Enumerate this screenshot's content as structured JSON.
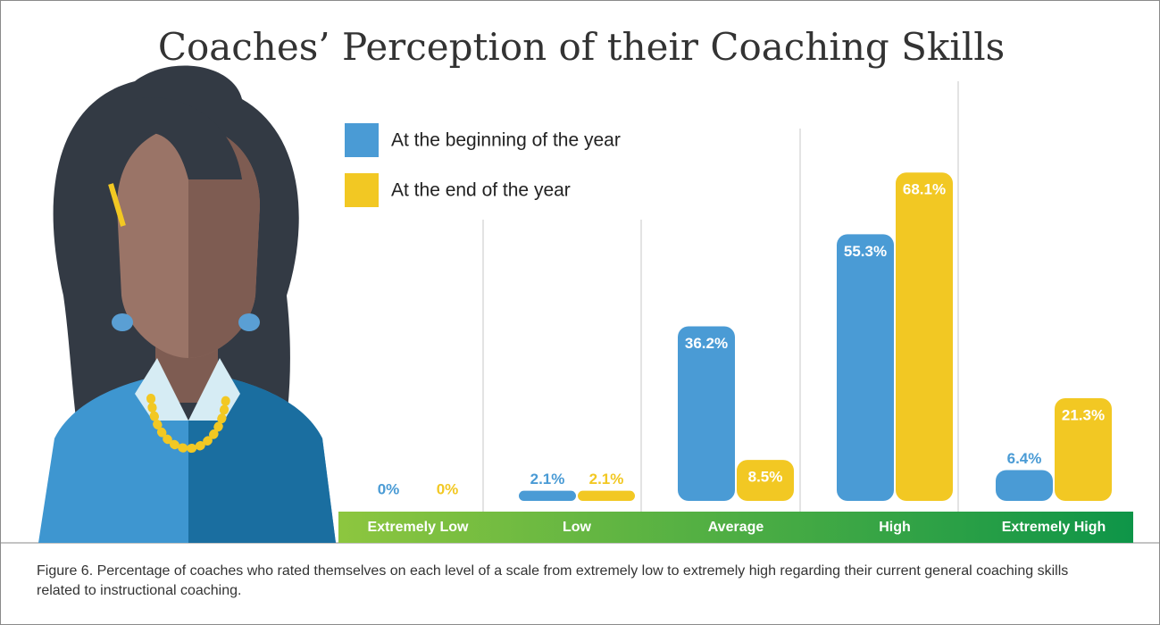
{
  "chart_data": {
    "type": "bar",
    "title": "Coaches’ Perception of their Coaching Skills",
    "categories": [
      "Extremely Low",
      "Low",
      "Average",
      "High",
      "Extremely High"
    ],
    "series": [
      {
        "name": "At the beginning of the year",
        "color": "#4a9bd5",
        "values": [
          0,
          2.1,
          36.2,
          55.3,
          6.4
        ],
        "value_labels": [
          "0%",
          "2.1%",
          "36.2%",
          "55.3%",
          "6.4%"
        ]
      },
      {
        "name": "At the end of the year",
        "color": "#f2c823",
        "values": [
          0,
          2.1,
          8.5,
          68.1,
          21.3
        ],
        "value_labels": [
          "0%",
          "2.1%",
          "8.5%",
          "68.1%",
          "21.3%"
        ]
      }
    ],
    "caption": "Figure 6. Percentage of coaches who rated themselves on each level of a scale from extremely low to extremely high regarding their current general coaching skills related to instructional coaching."
  }
}
